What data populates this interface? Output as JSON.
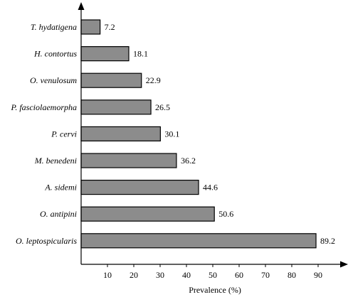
{
  "chart_data": {
    "type": "bar",
    "orientation": "horizontal",
    "categories": [
      "T. hydatigena",
      "H. contortus",
      "O. venulosum",
      "P. fasciolaemorpha",
      "P. cervi",
      "M. benedeni",
      "A. sidemi",
      "O. antipini",
      "O. leptospicularis"
    ],
    "values": [
      7.2,
      18.1,
      22.9,
      26.5,
      30.1,
      36.2,
      44.6,
      50.6,
      89.2
    ],
    "value_labels": [
      "7.2",
      "18.1",
      "22.9",
      "26.5",
      "30.1",
      "36.2",
      "44.6",
      "50.6",
      "89.2"
    ],
    "xticks": [
      "10",
      "20",
      "30",
      "40",
      "50",
      "60",
      "70",
      "80",
      "90"
    ],
    "xlim": [
      0,
      100
    ],
    "xlabel": "Prevalence (%)",
    "ylabel": "",
    "title": "",
    "grid": false,
    "bar_color": "#8c8c8c"
  }
}
